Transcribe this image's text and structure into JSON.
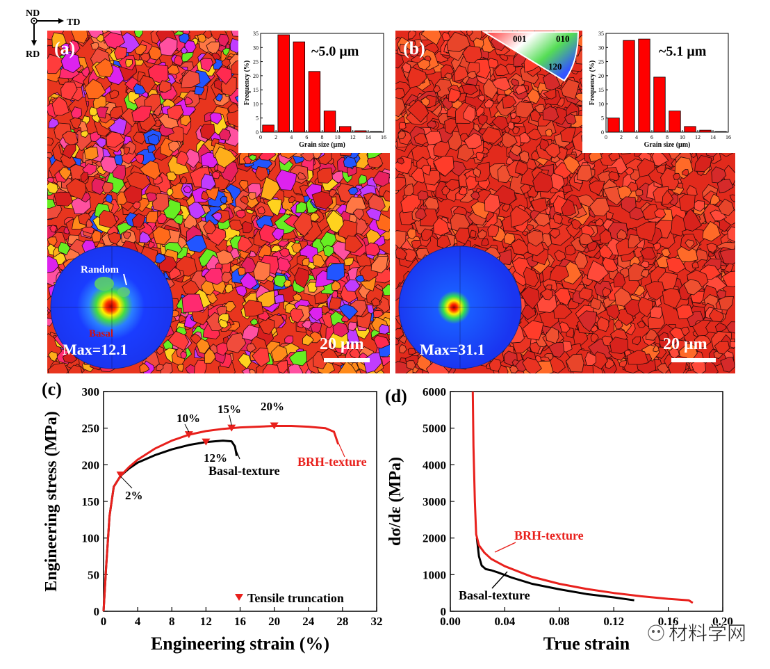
{
  "axes_indicator": {
    "nd": "ND",
    "td": "TD",
    "rd": "RD"
  },
  "panel_a": {
    "label": "(a)",
    "grain_size_avg": "~5.0 μm",
    "scale_bar": "20 μm",
    "pole_figure": {
      "max": "Max=12.1",
      "random_label": "Random",
      "basal_label": "Basal"
    }
  },
  "panel_b": {
    "label": "(b)",
    "grain_size_avg": "~5.1 μm",
    "scale_bar": "20 μm",
    "pole_figure": {
      "max": "Max=31.1"
    },
    "ipf_key": {
      "c001": "001",
      "c010": "010",
      "c120": "120"
    }
  },
  "panel_c": {
    "label": "(c)"
  },
  "panel_d": {
    "label": "(d)"
  },
  "watermark": "材料学网",
  "chart_data": [
    {
      "id": "hist-a",
      "type": "bar",
      "xlabel": "Grain size (μm)",
      "ylabel": "Frequency (%)",
      "xlim": [
        0,
        16
      ],
      "ylim": [
        0,
        35
      ],
      "xticks": [
        0,
        2,
        4,
        6,
        8,
        10,
        12,
        14,
        16
      ],
      "yticks": [
        0,
        5,
        10,
        15,
        20,
        25,
        30,
        35
      ],
      "x": [
        1,
        3,
        5,
        7,
        9,
        11,
        13,
        15
      ],
      "values": [
        2.5,
        34.5,
        32,
        21.5,
        7.5,
        2,
        0.5,
        0.2
      ]
    },
    {
      "id": "hist-b",
      "type": "bar",
      "xlabel": "Grain size (μm)",
      "ylabel": "Frequency (%)",
      "xlim": [
        0,
        16
      ],
      "ylim": [
        0,
        35
      ],
      "xticks": [
        0,
        2,
        4,
        6,
        8,
        10,
        12,
        14,
        16
      ],
      "yticks": [
        0,
        5,
        10,
        15,
        20,
        25,
        30,
        35
      ],
      "x": [
        1,
        3,
        5,
        7,
        9,
        11,
        13,
        15
      ],
      "values": [
        5,
        32.5,
        33,
        19.5,
        7.5,
        2,
        0.7,
        0.2
      ]
    },
    {
      "id": "stress-strain",
      "type": "line",
      "xlabel": "Engineering strain (%)",
      "ylabel": "Engineering stress (MPa)",
      "xlim": [
        0,
        32
      ],
      "ylim": [
        0,
        300
      ],
      "xticks": [
        0,
        4,
        8,
        12,
        16,
        20,
        24,
        28,
        32
      ],
      "yticks": [
        0,
        50,
        100,
        150,
        200,
        250,
        300
      ],
      "series": [
        {
          "name": "Basal-texture",
          "color": "#000000",
          "x": [
            0,
            0.3,
            0.7,
            1.2,
            2,
            3,
            4,
            6,
            8,
            10,
            12,
            13,
            14,
            15,
            15.4,
            15.6
          ],
          "y": [
            0,
            60,
            130,
            170,
            185,
            195,
            203,
            213,
            221,
            227,
            231,
            232,
            233,
            232,
            225,
            212
          ]
        },
        {
          "name": "BRH-texture",
          "color": "#e8201c",
          "x": [
            0,
            0.3,
            0.7,
            1.2,
            2,
            3,
            4,
            6,
            8,
            10,
            12,
            14,
            16,
            18,
            20,
            22,
            24,
            26,
            27,
            27.5
          ],
          "y": [
            0,
            60,
            130,
            170,
            185,
            197,
            207,
            222,
            233,
            241,
            246,
            249,
            251,
            252,
            253,
            253,
            252,
            250,
            245,
            228
          ]
        }
      ],
      "markers": [
        {
          "x": 2,
          "y": 186,
          "label": "2%"
        },
        {
          "x": 10,
          "y": 241,
          "label": "10%"
        },
        {
          "x": 12,
          "y": 231,
          "label": "12%"
        },
        {
          "x": 15,
          "y": 250,
          "label": "15%"
        },
        {
          "x": 20,
          "y": 253,
          "label": "20%"
        }
      ],
      "legend": {
        "marker_label": "Tensile truncation"
      },
      "annotations": [
        "Basal-texture",
        "BRH-texture"
      ]
    },
    {
      "id": "hardening",
      "type": "line",
      "xlabel": "True strain",
      "ylabel": "dσ/dε (MPa)",
      "xlim": [
        0,
        0.2
      ],
      "ylim": [
        0,
        6000
      ],
      "xticks": [
        0.0,
        0.04,
        0.08,
        0.12,
        0.16,
        0.2
      ],
      "xtick_labels": [
        "0.00",
        "0.04",
        "0.08",
        "0.12",
        "0.16",
        "0.20"
      ],
      "yticks": [
        0,
        1000,
        2000,
        3000,
        4000,
        5000,
        6000
      ],
      "series": [
        {
          "name": "Basal-texture",
          "color": "#000000",
          "x": [
            0.0195,
            0.021,
            0.023,
            0.026,
            0.03,
            0.035,
            0.045,
            0.06,
            0.08,
            0.1,
            0.12,
            0.135
          ],
          "y": [
            2000,
            1500,
            1250,
            1150,
            1120,
            1060,
            920,
            750,
            600,
            470,
            380,
            300
          ]
        },
        {
          "name": "BRH-texture",
          "color": "#e8201c",
          "x": [
            0.0165,
            0.017,
            0.018,
            0.019,
            0.021,
            0.025,
            0.03,
            0.04,
            0.06,
            0.08,
            0.1,
            0.12,
            0.14,
            0.16,
            0.175,
            0.178
          ],
          "y": [
            6000,
            4500,
            3000,
            2100,
            1800,
            1600,
            1430,
            1230,
            940,
            750,
            610,
            500,
            410,
            340,
            300,
            230
          ]
        }
      ],
      "annotations": [
        "BRH-texture",
        "Basal-texture"
      ]
    }
  ]
}
